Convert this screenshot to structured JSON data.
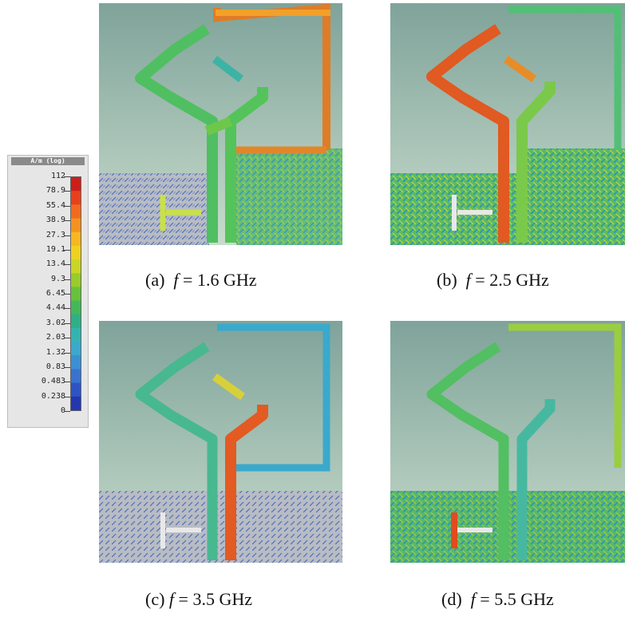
{
  "legend": {
    "unit": "A/m (log)",
    "ticks": [
      "112",
      "78.9",
      "55.4",
      "38.9",
      "27.3",
      "19.1",
      "13.4",
      "9.3",
      "6.45",
      "4.44",
      "3.02",
      "2.03",
      "1.32",
      "0.83",
      "0.483",
      "0.238",
      "0"
    ],
    "colors": [
      "#cc1f1a",
      "#e8401c",
      "#f26a1e",
      "#f5921f",
      "#f7b720",
      "#eed21f",
      "#c9d624",
      "#98cc2a",
      "#67c23a",
      "#43b85a",
      "#2faf86",
      "#33b4b0",
      "#3aa9cc",
      "#3b8fd4",
      "#3a72d0",
      "#2e54c4",
      "#2436b0"
    ]
  },
  "panels": [
    {
      "label": "(a)",
      "freq_symbol": "f",
      "eq": "= 1.6 GHz"
    },
    {
      "label": "(b)",
      "freq_symbol": "f",
      "eq": "= 2.5 GHz"
    },
    {
      "label": "(c)",
      "freq_symbol": "f",
      "eq": "= 3.5 GHz"
    },
    {
      "label": "(d)",
      "freq_symbol": "f",
      "eq": "= 5.5 GHz"
    }
  ]
}
